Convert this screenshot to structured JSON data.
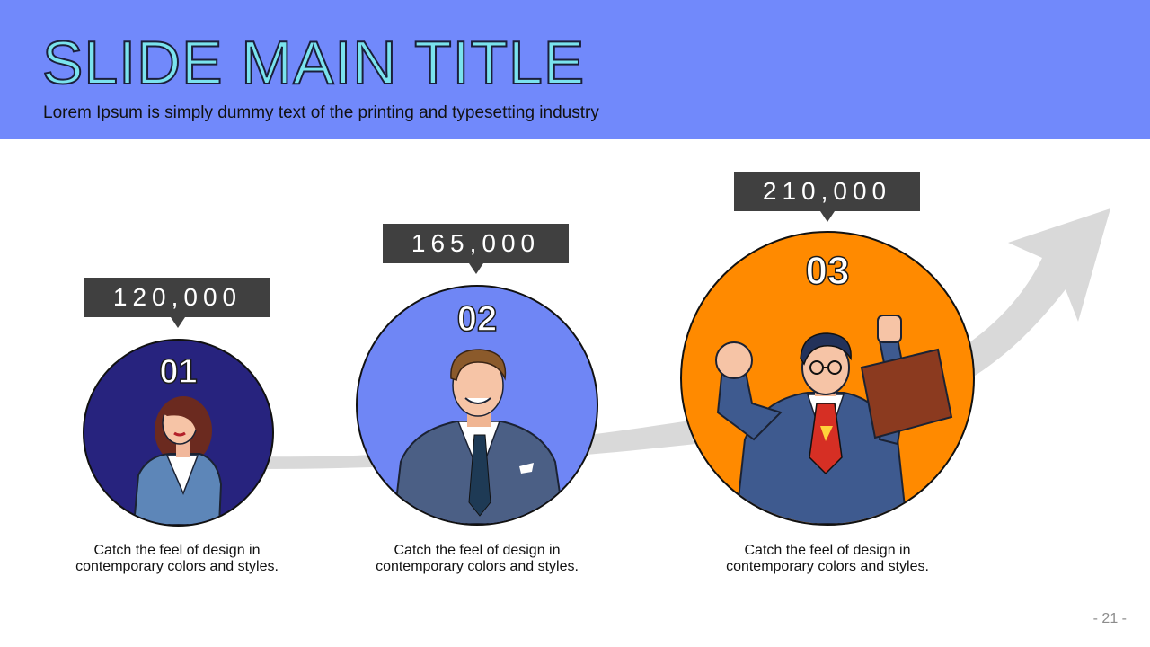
{
  "header": {
    "title": "SLIDE MAIN TITLE",
    "subtitle": "Lorem Ipsum is simply dummy text of the printing and typesetting industry"
  },
  "steps": [
    {
      "number": "01",
      "value": "120,000",
      "caption_line1": "Catch the feel of design in",
      "caption_line2": "contemporary colors and styles.",
      "circle_color": "#27237e",
      "figure": "woman-illustration"
    },
    {
      "number": "02",
      "value": "165,000",
      "caption_line1": "Catch the feel of design in",
      "caption_line2": "contemporary colors and styles.",
      "circle_color": "#6f86f5",
      "figure": "businessman-illustration"
    },
    {
      "number": "03",
      "value": "210,000",
      "caption_line1": "Catch the feel of design in",
      "caption_line2": "contemporary colors and styles.",
      "circle_color": "#ff8a00",
      "figure": "superhero-businessman-illustration"
    }
  ],
  "footer": {
    "page_number": "- 21 -"
  },
  "colors": {
    "header_bg": "#7189fb",
    "title_fill": "#7ae3ee",
    "bubble_bg": "#404040",
    "arrow": "#d9d9d9"
  }
}
